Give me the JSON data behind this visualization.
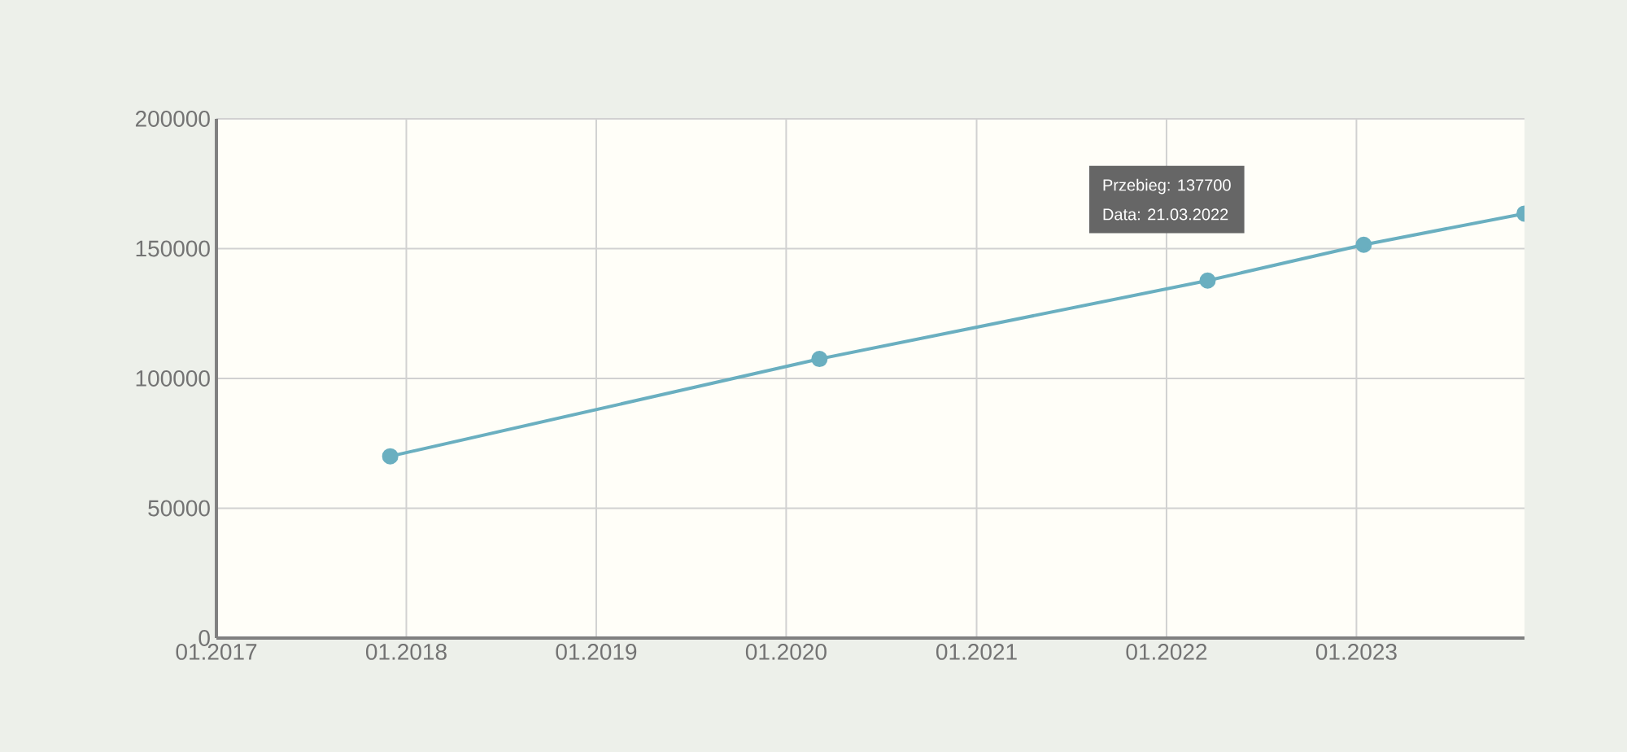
{
  "chart_data": {
    "type": "line",
    "x": [
      "2017-12-01",
      "2020-03-05",
      "2022-03-21",
      "2023-01-15",
      "2023-11-20"
    ],
    "series": [
      {
        "color": "#6aafc0",
        "values": [
          70000,
          107500,
          137700,
          151500,
          163500
        ]
      }
    ],
    "xlim": [
      "2017-01-01",
      "2023-11-20"
    ],
    "xticks": [
      {
        "value": "2017-01-01",
        "label": "01.2017"
      },
      {
        "value": "2018-01-01",
        "label": "01.2018"
      },
      {
        "value": "2019-01-01",
        "label": "01.2019"
      },
      {
        "value": "2020-01-01",
        "label": "01.2020"
      },
      {
        "value": "2021-01-01",
        "label": "01.2021"
      },
      {
        "value": "2022-01-01",
        "label": "01.2022"
      },
      {
        "value": "2023-01-01",
        "label": "01.2023"
      }
    ],
    "ylim": [
      0,
      200000
    ],
    "yticks": [
      0,
      50000,
      100000,
      150000,
      200000
    ],
    "grid": true,
    "marker": "circle",
    "line_style": "solid",
    "annotations": [
      "Przebieg:   137700",
      "Data:   21.03.2022"
    ]
  }
}
